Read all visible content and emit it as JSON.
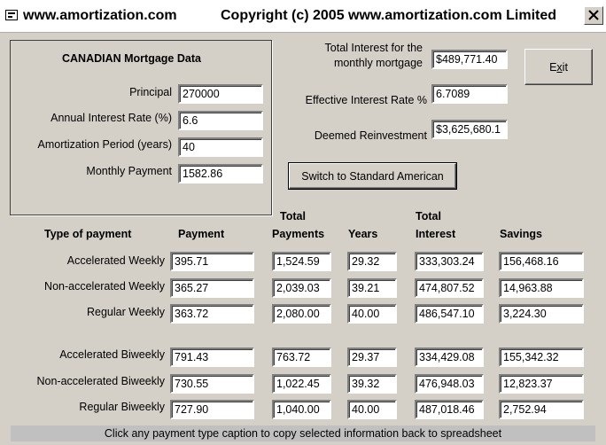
{
  "window": {
    "title_left": "www.amortization.com",
    "title_right": "Copyright (c) 2005 www.amortization.com Limited"
  },
  "mortgage": {
    "title": "CANADIAN Mortgage Data",
    "principal_label": "Principal",
    "principal_value": "270000",
    "rate_label": "Annual Interest Rate (%)",
    "rate_value": "6.6",
    "period_label": "Amortization Period (years)",
    "period_value": "40",
    "payment_label": "Monthly Payment",
    "payment_value": "1582.86"
  },
  "summary": {
    "total_interest_label_1": "Total Interest for the",
    "total_interest_label_2": "monthly mortgage",
    "total_interest_value": "$489,771.40",
    "effective_rate_label": "Effective Interest Rate %",
    "effective_rate_value": "6.7089",
    "deemed_label": "Deemed Reinvestment",
    "deemed_value": "$3,625,680.1"
  },
  "buttons": {
    "exit": "Exit",
    "exit_mnemonic": "x",
    "switch": "Switch to Standard American"
  },
  "table": {
    "headers": {
      "type": "Type of payment",
      "payment": "Payment",
      "total_payments_1": "Total",
      "total_payments_2": "Payments",
      "years": "Years",
      "total_interest_1": "Total",
      "total_interest_2": "Interest",
      "savings": "Savings"
    },
    "rows": [
      {
        "label": "Accelerated Weekly",
        "payment": "395.71",
        "total": "1,524.59",
        "years": "29.32",
        "interest": "333,303.24",
        "savings": "156,468.16"
      },
      {
        "label": "Non-accelerated Weekly",
        "payment": "365.27",
        "total": "2,039.03",
        "years": "39.21",
        "interest": "474,807.52",
        "savings": "14,963.88"
      },
      {
        "label": "Regular Weekly",
        "payment": "363.72",
        "total": "2,080.00",
        "years": "40.00",
        "interest": "486,547.10",
        "savings": "3,224.30"
      },
      {
        "label": "Accelerated Biweekly",
        "payment": "791.43",
        "total": "763.72",
        "years": "29.37",
        "interest": "334,429.08",
        "savings": "155,342.32"
      },
      {
        "label": "Non-accelerated Biweekly",
        "payment": "730.55",
        "total": "1,022.45",
        "years": "39.32",
        "interest": "476,948.03",
        "savings": "12,823.37"
      },
      {
        "label": "Regular Biweekly",
        "payment": "727.90",
        "total": "1,040.00",
        "years": "40.00",
        "interest": "487,018.46",
        "savings": "2,752.94"
      }
    ]
  },
  "status": {
    "text": "Click any payment type caption to copy selected information back to spreadsheet"
  }
}
